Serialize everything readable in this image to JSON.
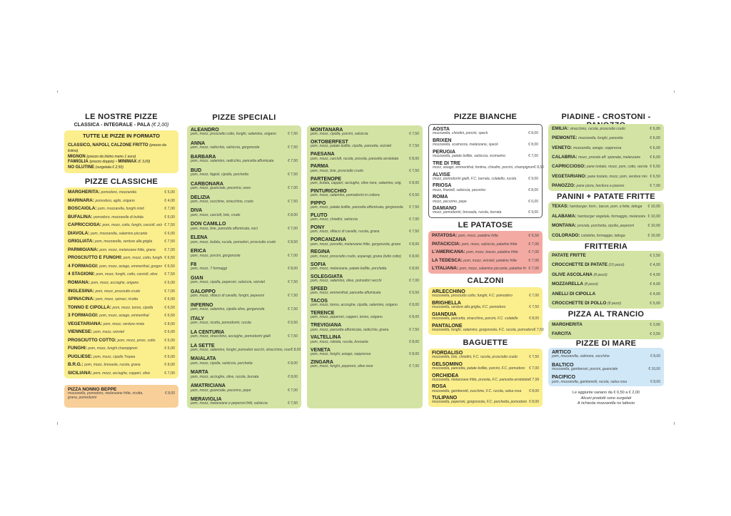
{
  "col1": {
    "title": "LE NOSTRE PIZZE",
    "subtitle": "CLASSICA - INTEGRALE - PALA",
    "subtitle_price": "(€ 2,00)",
    "formats": {
      "title": "TUTTE LE PIZZE IN FORMATO",
      "lines": [
        {
          "b": "CLASSICO, NAPOLI, CALZONE FRITTO",
          "i": "(prezzo da listino)"
        },
        {
          "b": "MIGNON",
          "i": "(prezzo da listino meno 1 euro)"
        },
        {
          "b": "FAMIGLIA",
          "i": "(prezzo doppio)",
          "b2": "- MINIMAX",
          "i2": "(€ 3,00)"
        },
        {
          "b": "NO GLUTINE",
          "i": "(surgelata € 2,50)"
        }
      ]
    },
    "classiche_title": "PIZZE CLASSICHE",
    "classiche": [
      {
        "n": "MARGHERITA:",
        "d": "pomodoro, mozzarella",
        "p": "€ 5,00"
      },
      {
        "n": "MARINARA:",
        "d": "pomodoro, aglio, origano",
        "p": "€ 4,00"
      },
      {
        "n": "BOSCAIOLA:",
        "d": "pom, mozzarella, funghi misti",
        "p": "€ 7,00"
      },
      {
        "n": "BUFALINA:",
        "d": "pomodoro, mozzarella di bufala",
        "p": "€ 6,00"
      },
      {
        "n": "CAPRICCIOSA:",
        "d": "pom, mozz, cotto, funghi, carciofi, würstel",
        "p": "€ 7,50"
      },
      {
        "n": "DIAVOLA:",
        "d": "pom, mozzarella, salamino piccante",
        "p": "€ 6,00"
      },
      {
        "n": "GRIGLIATA:",
        "d": "pom, mozzarella, verdure alla griglia",
        "p": "€ 7,50"
      },
      {
        "n": "PARMIGIANA:",
        "d": "pom, mozz, melanzane fritte, grana",
        "p": "€ 7,00"
      },
      {
        "n": "PROSCIUTTO E FUNGHI:",
        "d": "pom, mozz, cotto, funghi",
        "p": "€ 6,50"
      },
      {
        "n": "4 FORMAGGI:",
        "d": "pom, mozz, asiago, emmenthal, gorgonzola",
        "p": "€ 6,50"
      },
      {
        "n": "4 STAGIONI:",
        "d": "pom, mozz, funghi, cotto, carciofi, olive",
        "p": "€ 7,50"
      },
      {
        "n": "ROMANA:",
        "d": "pom, mozz, acciughe, origano",
        "p": "€ 6,00"
      },
      {
        "n": "INGLESINA:",
        "d": "pom, mozz, prosciutto crudo",
        "p": "€ 7,00"
      },
      {
        "n": "SPINACINA:",
        "d": "pom, mozz, spinaci, ricotta",
        "p": "€ 6,00"
      },
      {
        "n": "TONNO E CIPOLLA:",
        "d": "pom, mozz, tonno, cipolla",
        "p": "€ 6,50"
      },
      {
        "n": "3 FORMAGGI:",
        "d": "pom, mozz, asiago, emmenthal",
        "p": "€ 6,50"
      },
      {
        "n": "VEGETARIANA:",
        "d": "pom, mozz, verdure miste",
        "p": "€ 8,00"
      },
      {
        "n": "VIENNESE:",
        "d": "pom, mozz, würstel",
        "p": "€ 6,00"
      },
      {
        "n": "PROSCIUTTO COTTO:",
        "d": "pom, mozz, prosc. cotto",
        "p": "€ 6,00"
      },
      {
        "n": "FUNGHI:",
        "d": "pom, mozz, funghi champignon",
        "p": "€ 6,00"
      },
      {
        "n": "PUGLIESE:",
        "d": "pom, mozz, cipolla Tropea",
        "p": "€ 6,00"
      },
      {
        "n": "B.R.G.:",
        "d": "pom, mozz, bresaola, rucola, grana",
        "p": "€ 8,00"
      },
      {
        "n": "SICILIANA:",
        "d": "pom, mozz, acciughe, capperi, olive",
        "p": "€ 7,00"
      }
    ],
    "nonno": {
      "n": "PIZZA NONNO BEPPE",
      "d": "mozzarella, pomodoro, melanzane fritte, ricotta, grana, pomodorini",
      "p": "€ 8,00"
    }
  },
  "col2": {
    "title": "PIZZE SPECIALI",
    "items": [
      {
        "n": "ALEANDRO",
        "d": "pom, mozz, prosciutto cotto, funghi, salamino, origano",
        "p": "€ 7,50"
      },
      {
        "n": "ANNA",
        "d": "pom, mozz, radicchio, salsiccia, gorgonzola",
        "p": "€ 7,50"
      },
      {
        "n": "BARBARA",
        "d": "pom, mozz, salamino, radicchio, pancetta affumicata",
        "p": "€ 7,50"
      },
      {
        "n": "BUD",
        "d": "pom, mozz, fagioli, cipolla, porchetta",
        "p": "€ 7,50"
      },
      {
        "n": "CARBONARA",
        "d": "pom, mozz, guanciale, pecorino, uovo",
        "p": "€ 7,00"
      },
      {
        "n": "DELIZIA",
        "d": "pom, mozz, zucchine, stracchino, crudo",
        "p": "€ 7,50"
      },
      {
        "n": "DIVA",
        "d": "pom, mozz, carciofi, brie, crudo",
        "p": "€ 8,00"
      },
      {
        "n": "DON CAMILLO",
        "d": "pom, mozz, brie, pancetta affumicata, noci",
        "p": "€ 7,00"
      },
      {
        "n": "ELENA",
        "d": "pom, mozz, bufala, rucola, pomodori, prosciutto crudo",
        "p": "€ 8,50"
      },
      {
        "n": "ERICA",
        "d": "pom, mozz, porcini, gorgonzola",
        "p": "€ 7,00"
      },
      {
        "n": "F8",
        "d": "pom, mozz, 7 formaggi",
        "p": "€ 8,00"
      },
      {
        "n": "GIAN",
        "d": "pom, mozz, cipolla, peperoni, salsiccia, würstel",
        "p": "€ 7,50"
      },
      {
        "n": "GALOPPO",
        "d": "pom, mozz, sfilacci di cavallo, funghi, peperoni",
        "p": "€ 7,50"
      },
      {
        "n": "INFERNO",
        "d": "pom, mozz, salamino, cipolla olive, gorgonzola",
        "p": "€ 7,50"
      },
      {
        "n": "ITALY",
        "d": "pom, mozz, ricotta, pomodorini, rucola",
        "p": "€ 6,50"
      },
      {
        "n": "LA CENTURIA",
        "d": "pom, mozz, stracchino, acciughe, pomodorini gialli",
        "p": "€ 7,50"
      },
      {
        "n": "LA SETTE",
        "d": "pom, mozz, salamino, funghi, pomodori secchi, stracchino, noci",
        "p": "€ 8,00"
      },
      {
        "n": "MAIALATA",
        "d": "pom, mozz, cipolla, salsiccia, porchetta",
        "p": "€ 8,00"
      },
      {
        "n": "MARTA",
        "d": "pom, mozz, acciughe, olive, rucola, burrata",
        "p": "€ 8,00"
      },
      {
        "n": "AMATRICIANA",
        "d": "pom, mozz, guanciale, pecorino, pepe",
        "p": "€ 7,00"
      },
      {
        "n": "MERAVIGLIA",
        "d": "pom, mozz, melanzane e peperoni fritti, salsiccia",
        "p": "€ 7,50"
      }
    ]
  },
  "col3": {
    "items": [
      {
        "n": "MONTANARA",
        "d": "pom, mozz, cipolla, porcini, salsiccia",
        "p": "€ 7,50"
      },
      {
        "n": "OKTOBERFEST",
        "d": "pom, mozz, patate bollite, cipolla, pancetta, würstel",
        "p": "€ 7,50"
      },
      {
        "n": "PAESANA",
        "d": "pom, mozz, carciofi, rucola, provola, pancetta arrotolata",
        "p": "€ 8,00"
      },
      {
        "n": "PARMA",
        "d": "pom, mozz, brie, prosciutto crudo",
        "p": "€ 7,50"
      },
      {
        "n": "PARTENOPE",
        "d": "pom, bufala, capperi, acciughe, olive nere, salamino, orig.",
        "p": "€ 8,00"
      },
      {
        "n": "PINTURICCHIO",
        "d": "pom, mozz, salamino, pomodorini in cottura",
        "p": "€ 6,50"
      },
      {
        "n": "PIPPO",
        "d": "pom, mozz, patate bollite, pancetta affumicata, gorgonzola",
        "p": "€ 7,50"
      },
      {
        "n": "PLUTO",
        "d": "pom, mozz, chiodini, salsiccia",
        "p": "€ 7,00"
      },
      {
        "n": "PONY",
        "d": "pom, mozz, sfilacci di cavallo, rucola, grana",
        "p": "€ 7,50"
      },
      {
        "n": "PORCANZANA",
        "d": "pom, mozz, porcello, melanzane fritte, gorgonzola, grana",
        "p": "€ 8,00"
      },
      {
        "n": "REGINA",
        "d": "pom, mozz, prosciutto crudo, asparagi, grana (tutto cotto)",
        "p": "€ 8,00"
      },
      {
        "n": "SOFIA",
        "d": "pom, mozz, melanzane, patate bollite, porchetta",
        "p": "€ 8,00"
      },
      {
        "n": "SOLEGGIATA",
        "d": "pom, mozz, salamino, olive, pomodori secchi",
        "p": "€ 7,00"
      },
      {
        "n": "SPEED",
        "d": "pom, mozz, emmenthal, pancetta affumicata",
        "p": "€ 6,50"
      },
      {
        "n": "TACOS",
        "d": "pom, mozz, tonno, acciughe, cipolla, salamino, origano",
        "p": "€ 8,00"
      },
      {
        "n": "TERENCE",
        "d": "pom, mozz, peperoni, capperi, tonno, origano",
        "p": "€ 8,00"
      },
      {
        "n": "TREVIGIANA",
        "d": "pom, mozz, pancetta affumicata, radicchio, grana",
        "p": "€ 7,50"
      },
      {
        "n": "VALTELLINA",
        "d": "pom, mozz, robiola, rucola, bresaola",
        "p": "€ 8,00"
      },
      {
        "n": "VENETA",
        "d": "pom, mozz, funghi, asiago, soppressa",
        "p": "€ 8,00"
      },
      {
        "n": "ZINGARA",
        "d": "pom, mozz, funghi, peperoni, olive nere",
        "p": "€ 7,00"
      }
    ]
  },
  "col4": {
    "bianche_title": "PIZZE BIANCHE",
    "bianche": [
      {
        "n": "AOSTA",
        "d": "mozzarella, chiodini, porcini, speck",
        "p": "€ 8,00"
      },
      {
        "n": "BRIXEN",
        "d": "mozzarella, scamorza, melanzane, speck",
        "p": "€ 8,00"
      },
      {
        "n": "PERUGIA",
        "d": "mozzarella, patate bollite, salsiccia, rosmarino",
        "p": "€ 7,00"
      },
      {
        "n": "TRE DI TRE",
        "d": "mozz, asiago, emmenthal, fontina, chiodini, porcini, champignon",
        "p": "€ 8,50"
      },
      {
        "n": "ALVISE",
        "d": "mozz, pomodorini gialli, F.C, burrata, culatello, rucola",
        "p": "€ 9,00"
      },
      {
        "n": "FRIOSA",
        "d": "mozz, friarielli, salsiccia, pecorino",
        "p": "€ 8,00"
      },
      {
        "n": "ROMA",
        "d": "mozz, pecorino, pepe",
        "p": "€ 6,00"
      },
      {
        "n": "DAMIANO",
        "d": "mozz, pomodorini, bresaola, rucola, burrata",
        "p": "€ 9,00"
      }
    ],
    "patatose_title": "LE PATATOSE",
    "patatose": [
      {
        "n": "PATATOSA:",
        "d": "pom, mozz, patatine fritte",
        "p": "€ 6,50"
      },
      {
        "n": "PATACICCIA:",
        "d": "pom, mozz, salsiccia, patatine fritte",
        "p": "€ 7,00"
      },
      {
        "n": "L'AMERICANA:",
        "d": "pom, mozz, bacon, patatine fritte",
        "p": "€ 7,00"
      },
      {
        "n": "LA TEDESCA:",
        "d": "pom, mozz, würstel, patatine fritte",
        "p": "€ 7,00"
      },
      {
        "n": "L'ITALIANA:",
        "d": "pom, mozz, salamino piccante, patatine fritte",
        "p": "€ 7,00"
      }
    ],
    "calzoni_title": "CALZONI",
    "calzoni": [
      {
        "n": "ARLECCHINO",
        "d": "mozzarella, prosciutto cotto, funghi, F.C. pomodoro",
        "p": "€ 7,00"
      },
      {
        "n": "BRIGHELLA",
        "d": "mozzarella, verdure alla griglia, F.C. pomodoro",
        "p": "€ 7,50"
      },
      {
        "n": "GIANDUIA",
        "d": "mozzarella, pancetta, stracchino, porcini, F.C. culatello",
        "p": "€ 8,00"
      },
      {
        "n": "PANTALONE",
        "d": "mozzarella, funghi, salamino, gorgonzola, F.C. rucola, pomodoro",
        "p": "€ 7,50"
      }
    ],
    "baguette_title": "BAGUETTE",
    "baguette": [
      {
        "n": "FIORDALISO",
        "d": "mozzarella, brie, chiodini, F.C. rucola, prosciutto crudo",
        "p": "€ 7,50"
      },
      {
        "n": "GELSOMINO",
        "d": "mozzarella, pancetta, patate bollite, porcini, F.C. pomodoro",
        "p": "€ 7,00"
      },
      {
        "n": "ORCHIDEA",
        "d": "mozzarella, melanzane fritte, provola, F.C. pancetta arrotolata",
        "p": "€ 7,50"
      },
      {
        "n": "ROSA",
        "d": "mozzarella, gamberetti, zucchine, F.C. rucola, salsa rosa",
        "p": "€ 8,00"
      },
      {
        "n": "TULIPANO",
        "d": "mozzarella, peperoni, gorgonzola, F.C. porchetta, pomodoro",
        "p": "€ 8,00"
      }
    ]
  },
  "col5": {
    "piadine_title": "PIADINE - CROSTONI - PANOZZO",
    "piadine": [
      {
        "n": "EMILIA:",
        "d": "stracchino, rucola, prosciutto crudo",
        "p": "€ 6,00"
      },
      {
        "n": "PIEMONTE:",
        "d": "mozzarella, funghi, pancetta",
        "p": "€ 6,00"
      },
      {
        "n": "VENETO:",
        "d": "mozzarella, asiago, soppressa",
        "p": "€ 6,00"
      },
      {
        "n": "CALABRIA:",
        "d": "mozz, provola aff. spianata, melanzane",
        "p": "€ 6,00"
      },
      {
        "n": "CAPRICCIOSO:",
        "d": "pane tostato, mozz, pom, cotto, wurstel, funghi",
        "p": "€ 6,50"
      },
      {
        "n": "VEGETARIANO:",
        "d": "pane tostato, mozz, pom, verdure miste",
        "p": "€ 6,50"
      },
      {
        "n": "PANOZZO:",
        "d": "pane pizza, farcitura a piacere",
        "p": "€ 7,00"
      }
    ],
    "panini_title": "PANINI + PATATE FRITTE",
    "panini": [
      {
        "n": "TEXAS:",
        "d": "hamburger, form., bacon, pom. a fette, lattuga",
        "p": "€ 10,00"
      },
      {
        "n": "ALABAMA:",
        "d": "hamburger vegetale, formaggio, melanzane, zucchine",
        "p": "€ 10,00"
      },
      {
        "n": "MONTANA:",
        "d": "provola, porchetta, cipolla, peperoni",
        "p": "€ 10,00"
      },
      {
        "n": "COLORADO:",
        "d": "cotoletta, formaggio, lattuga",
        "p": "€ 10,00"
      }
    ],
    "fritteria_title": "FRITTERIA",
    "fritteria": [
      {
        "n": "PATATE FRITTE",
        "d": "",
        "p": "€ 2,50"
      },
      {
        "n": "CROCCHETTE DI PATATE",
        "d": "(10 pezzi)",
        "p": "€ 4,00"
      },
      {
        "n": "OLIVE ASCOLANA",
        "d": "(8 pezzi)",
        "p": "€ 4,00"
      },
      {
        "n": "MOZZARELLA",
        "d": "(8 pezzi)",
        "p": "€ 4,00"
      },
      {
        "n": "ANELLI DI CIPOLLA",
        "d": "",
        "p": "€ 4,00"
      },
      {
        "n": "CROCCHETTE DI POLLO",
        "d": "(8 pezzi)",
        "p": "€ 5,00"
      }
    ],
    "trancio_title": "PIZZA AL TRANCIO",
    "trancio": [
      {
        "n": "MARGHERITA",
        "d": "",
        "p": "€ 3,00"
      },
      {
        "n": "FARCITA",
        "d": "",
        "p": "€ 3,50"
      }
    ],
    "mare_title": "PIZZE DI MARE",
    "mare": [
      {
        "n": "ARTICO",
        "d": "pom, mozzarella, salmone, zucchine",
        "p": "€ 8,00"
      },
      {
        "n": "BALTICO",
        "d": "mozzarella, gamberoni, porcini, guanciale",
        "p": "€ 10,00"
      },
      {
        "n": "PACIFICO",
        "d": "pom, mozzarella, gamberetti, rucola, salsa rosa",
        "p": "€ 8,00"
      }
    ],
    "notes": [
      "Le aggiunte variano da € 0,50 a € 2,00",
      "Alcuni prodotti sono surgelati",
      "A richiesta mozzarella no lattosio"
    ]
  },
  "colors": {
    "yellow": "#fbee8c",
    "green": "#d3e3a3",
    "red": "#f3aaa2",
    "blue": "#cfe7f6",
    "orange": "#f8cf99"
  }
}
